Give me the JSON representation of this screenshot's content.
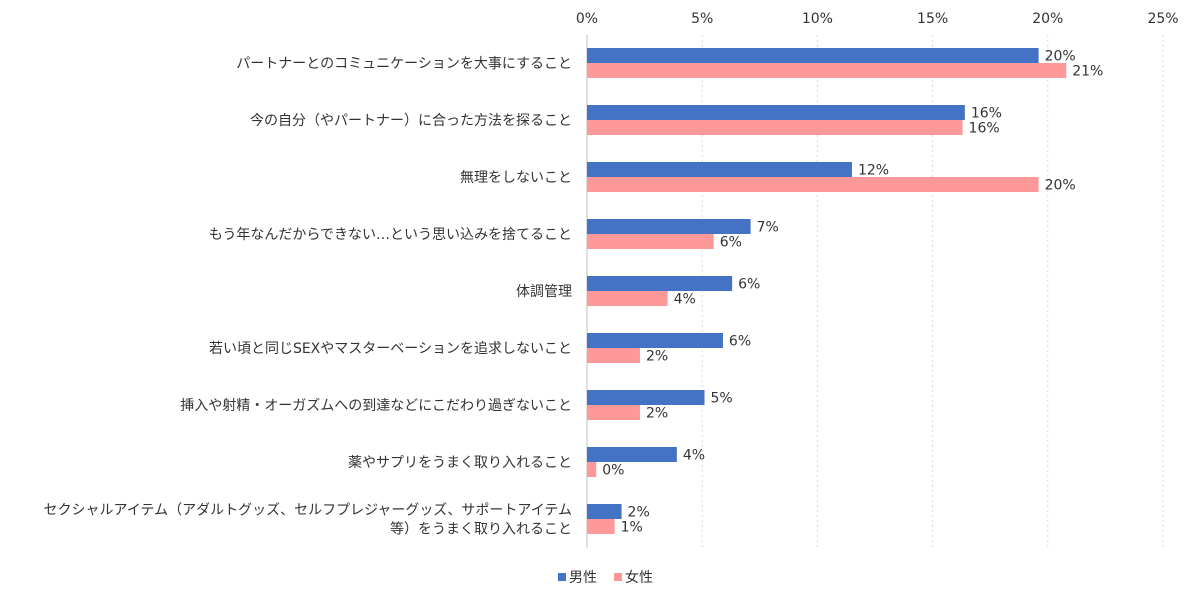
{
  "chart_data": {
    "type": "bar",
    "orientation": "horizontal",
    "categories": [
      [
        "パートナーとのコミュニケーションを大事にすること"
      ],
      [
        "今の自分（やパートナー）に合った方法を探ること"
      ],
      [
        "無理をしないこと"
      ],
      [
        "もう年なんだからできない…という思い込みを捨てること"
      ],
      [
        "体調管理"
      ],
      [
        "若い頃と同じSEXやマスターベーションを追求しないこと"
      ],
      [
        "挿入や射精・オーガズムへの到達などにこだわり過ぎないこと"
      ],
      [
        "薬やサプリをうまく取り入れること"
      ],
      [
        "セクシャルアイテム（アダルトグッズ、セルフプレジャーグッズ、サポートアイテム",
        "等）をうまく取り入れること"
      ]
    ],
    "series": [
      {
        "name": "男性",
        "color": "#4472c4",
        "values": [
          19.6,
          16.4,
          11.5,
          7.1,
          6.3,
          5.9,
          5.1,
          3.9,
          1.5
        ],
        "labels": [
          "20%",
          "16%",
          "12%",
          "7%",
          "6%",
          "6%",
          "5%",
          "4%",
          "2%"
        ]
      },
      {
        "name": "女性",
        "color": "#ff9999",
        "values": [
          20.8,
          16.3,
          19.6,
          5.5,
          3.5,
          2.3,
          2.3,
          0.4,
          1.2
        ],
        "labels": [
          "21%",
          "16%",
          "20%",
          "6%",
          "4%",
          "2%",
          "2%",
          "0%",
          "1%"
        ]
      }
    ],
    "xlim": [
      0,
      25
    ],
    "ticks": [
      0,
      5,
      10,
      15,
      20,
      25
    ],
    "tick_labels": [
      "0%",
      "5%",
      "10%",
      "15%",
      "20%",
      "25%"
    ],
    "axis_position": "top",
    "grid": true,
    "legend": "bottom"
  }
}
